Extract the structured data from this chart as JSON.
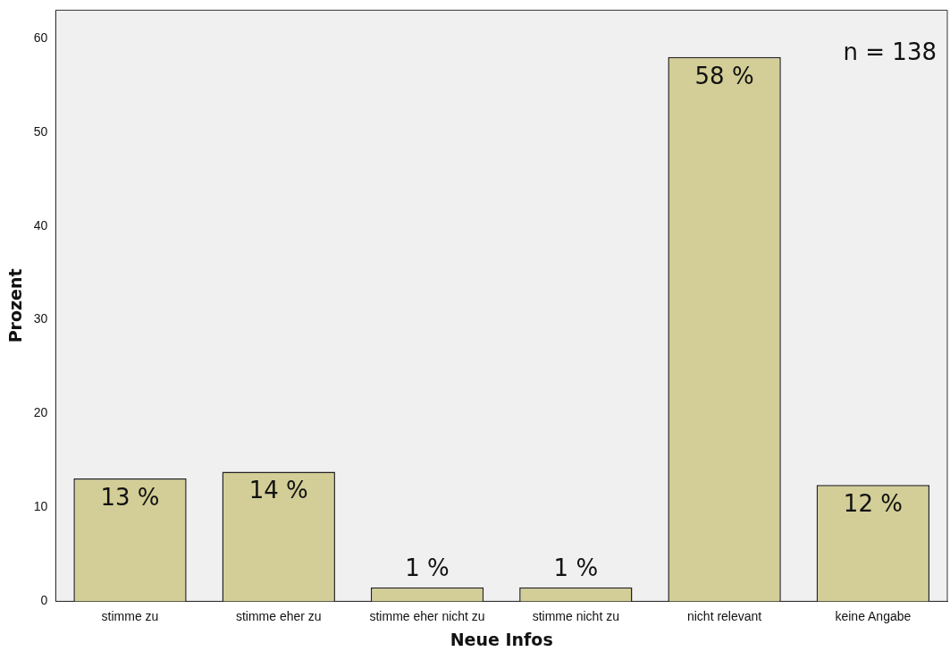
{
  "chart_data": {
    "type": "bar",
    "xlabel": "Neue Infos",
    "ylabel": "Prozent",
    "categories": [
      "stimme zu",
      "stimme eher zu",
      "stimme eher nicht zu",
      "stimme nicht zu",
      "nicht relevant",
      "keine Angabe"
    ],
    "values": [
      13.1,
      13.8,
      1.5,
      1.5,
      58,
      12.4
    ],
    "value_labels": [
      "13 %",
      "14 %",
      "1 %",
      "1 %",
      "58 %",
      "12 %"
    ],
    "color": "#d3ce97",
    "ylim": [
      0,
      63
    ],
    "yticks": [
      0,
      10,
      20,
      30,
      40,
      50,
      60
    ],
    "grid": false,
    "annotations": [
      "n = 138"
    ]
  }
}
